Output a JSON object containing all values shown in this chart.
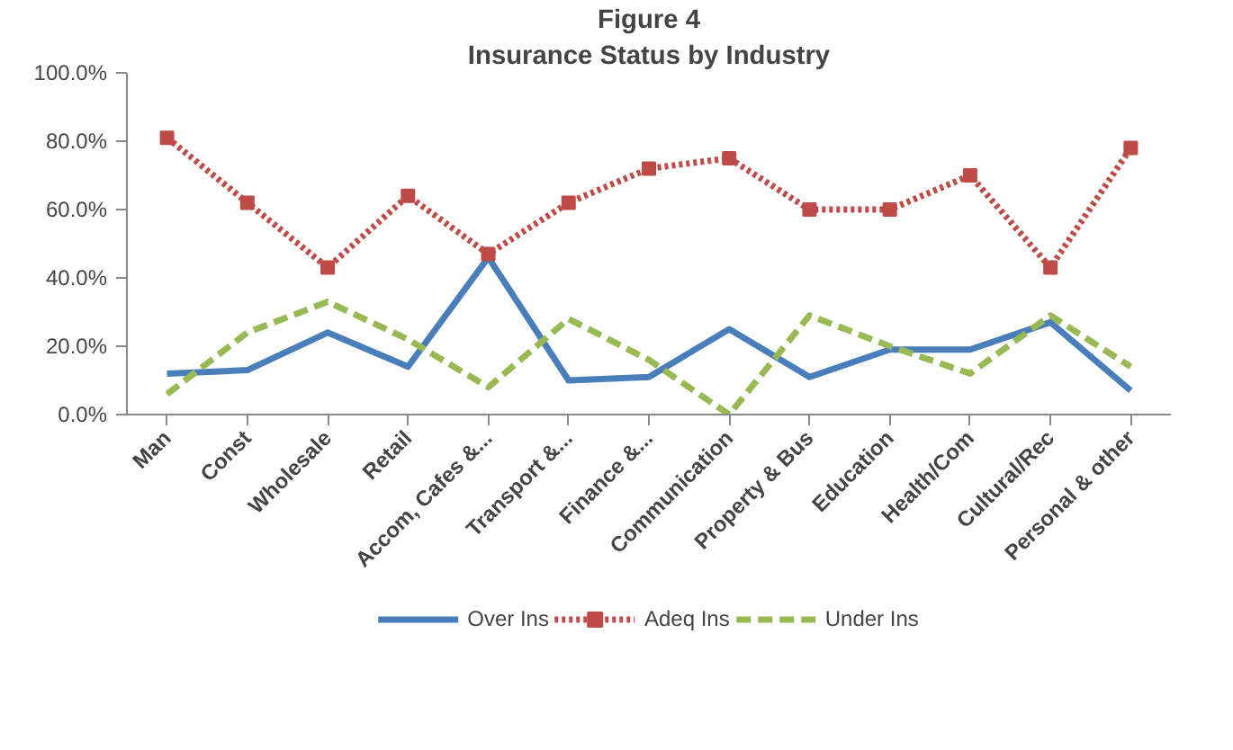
{
  "chart_data": {
    "type": "line",
    "title": "Figure 4",
    "subtitle": "Insurance Status by Industry",
    "categories": [
      "Man",
      "Const",
      "Wholesale",
      "Retail",
      "Accom, Cafes &...",
      "Transport &...",
      "Finance &...",
      "Communication",
      "Property & Bus",
      "Education",
      "Health/Com",
      "Cultural/Rec",
      "Personal & other"
    ],
    "series": [
      {
        "name": "Over Ins",
        "color": "#4a7ebb",
        "line_style": "solid",
        "marker": "none",
        "values": [
          12,
          13,
          24,
          14,
          46,
          10,
          11,
          25,
          11,
          19,
          19,
          27,
          7
        ]
      },
      {
        "name": "Adeq Ins",
        "color": "#be4b48",
        "line_style": "dotted",
        "marker": "square",
        "values": [
          81,
          62,
          43,
          64,
          47,
          62,
          72,
          75,
          60,
          60,
          70,
          43,
          78
        ]
      },
      {
        "name": "Under Ins",
        "color": "#98b954",
        "line_style": "dashed",
        "marker": "none",
        "values": [
          6,
          24,
          33,
          22,
          8,
          28,
          16,
          0,
          29,
          20,
          12,
          29,
          14
        ]
      }
    ],
    "ylim": [
      0,
      100
    ],
    "yticks": [
      {
        "value": 0,
        "label": "0.0%"
      },
      {
        "value": 20,
        "label": "20.0%"
      },
      {
        "value": 40,
        "label": "40.0%"
      },
      {
        "value": 60,
        "label": "60.0%"
      },
      {
        "value": 80,
        "label": "80.0%"
      },
      {
        "value": 100,
        "label": "100.0%"
      }
    ],
    "grid": false,
    "legend": "bottom"
  }
}
